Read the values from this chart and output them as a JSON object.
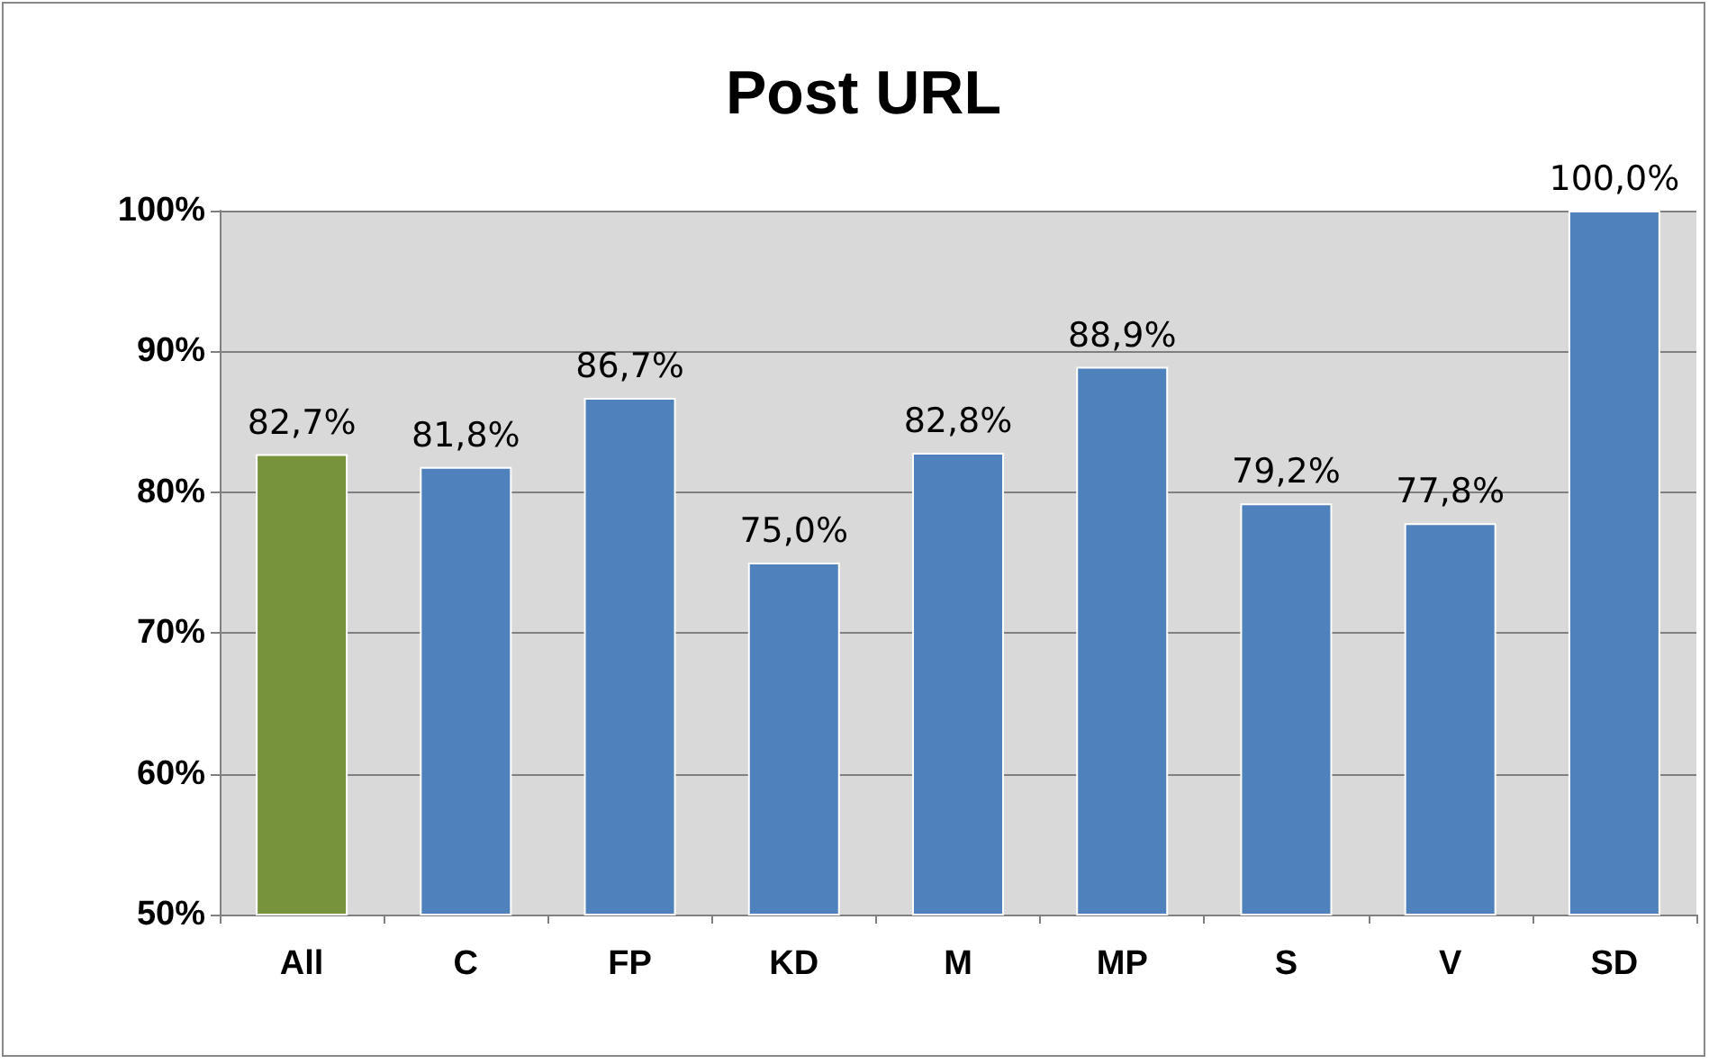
{
  "chart_data": {
    "type": "bar",
    "title": "Post URL",
    "categories": [
      "All",
      "C",
      "FP",
      "KD",
      "M",
      "MP",
      "S",
      "V",
      "SD"
    ],
    "values": [
      82.7,
      81.8,
      86.7,
      75.0,
      82.8,
      88.9,
      79.2,
      77.8,
      100.0
    ],
    "colors": [
      "#77933c",
      "#4f81bd",
      "#4f81bd",
      "#4f81bd",
      "#4f81bd",
      "#4f81bd",
      "#4f81bd",
      "#4f81bd",
      "#4f81bd"
    ],
    "value_labels": [
      "82,7%",
      "81,8%",
      "86,7%",
      "75,0%",
      "82,8%",
      "88,9%",
      "79,2%",
      "77,8%",
      "100,0%"
    ],
    "ylim": [
      50,
      100
    ],
    "yticks": [
      {
        "value": 50,
        "label": "50%"
      },
      {
        "value": 60,
        "label": "60%"
      },
      {
        "value": 70,
        "label": "70%"
      },
      {
        "value": 80,
        "label": "80%"
      },
      {
        "value": 90,
        "label": "90%"
      },
      {
        "value": 100,
        "label": "100%"
      }
    ],
    "grid": "y"
  }
}
